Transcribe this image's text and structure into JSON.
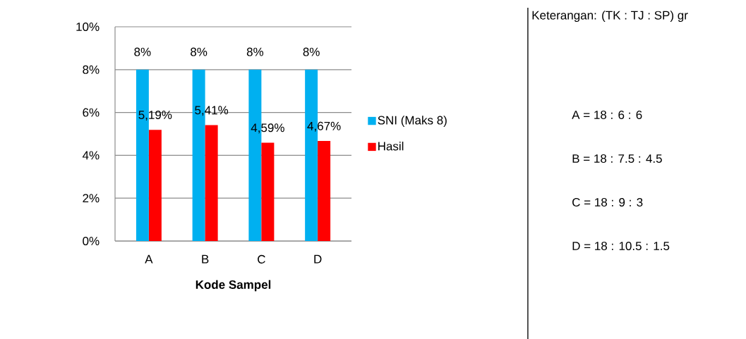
{
  "chart_data": {
    "type": "bar",
    "categories": [
      "A",
      "B",
      "C",
      "D"
    ],
    "series": [
      {
        "name": "SNI (Maks 8)",
        "color": "#00b0f0",
        "values": [
          8,
          8,
          8,
          8
        ],
        "value_labels": [
          "8%",
          "8%",
          "8%",
          "8%"
        ]
      },
      {
        "name": "Hasil",
        "color": "#ff0000",
        "values": [
          5.19,
          5.41,
          4.59,
          4.67
        ],
        "value_labels": [
          "5,19%",
          "5,41%",
          "4,59%",
          "4,67%"
        ]
      }
    ],
    "xlabel": "Kode Sampel",
    "ylim": [
      0,
      10
    ],
    "yticks": [
      {
        "value": 0,
        "label": "0%"
      },
      {
        "value": 2,
        "label": "2%"
      },
      {
        "value": 4,
        "label": "4%"
      },
      {
        "value": 6,
        "label": "6%"
      },
      {
        "value": 8,
        "label": "8%"
      },
      {
        "value": 10,
        "label": "10%"
      }
    ],
    "grid": "y",
    "legend": "right",
    "annotations": [
      "Keterangan: (TK : TJ : SP) gr",
      "A = 18 : 6 : 6",
      "B = 18 : 7.5 : 4.5",
      "C = 18 : 9 : 3",
      "D = 18 : 10.5 : 1.5"
    ]
  }
}
